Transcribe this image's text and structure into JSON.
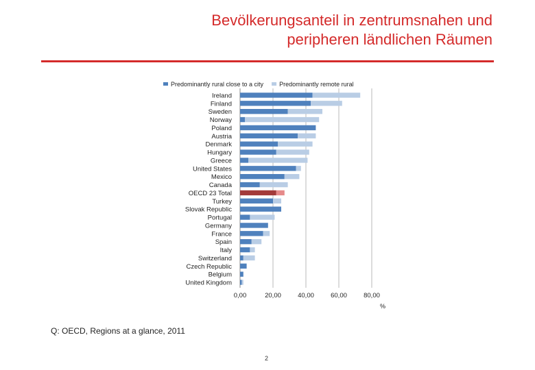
{
  "slide": {
    "title_line1": "Bevölkerungsanteil in zentrumsnahen und",
    "title_line2": "peripheren ländlichen Räumen",
    "source": "Q: OECD, Regions at a glance, 2011",
    "page_number": "2"
  },
  "colors": {
    "accent": "#d42a2a",
    "series_close": "#4f81bd",
    "series_remote": "#b9cde5",
    "highlight_close": "#a33a3a",
    "highlight_remote": "#e68a8a",
    "grid": "#b8b8b8"
  },
  "chart_data": {
    "type": "bar",
    "orientation": "horizontal",
    "stacked": true,
    "categories": [
      "Ireland",
      "Finland",
      "Sweden",
      "Norway",
      "Poland",
      "Austria",
      "Denmark",
      "Hungary",
      "Greece",
      "United States",
      "Mexico",
      "Canada",
      "OECD 23 Total",
      "Turkey",
      "Slovak Republic",
      "Portugal",
      "Germany",
      "France",
      "Spain",
      "Italy",
      "Switzerland",
      "Czech Republic",
      "Belgium",
      "United Kingdom"
    ],
    "highlight_category": "OECD 23 Total",
    "series": [
      {
        "name": "Predominantly rural close to a city",
        "values": [
          44,
          43,
          29,
          3,
          46,
          35,
          23,
          22,
          5,
          34,
          27,
          12,
          22,
          20,
          25,
          6,
          17,
          14,
          7,
          6,
          2,
          4,
          2,
          1
        ]
      },
      {
        "name": "Predominantly remote rural",
        "values": [
          29,
          19,
          21,
          45,
          0,
          11,
          21,
          20,
          36,
          3,
          9,
          17,
          5,
          5,
          0,
          15,
          0,
          4,
          6,
          3,
          7,
          0,
          0,
          1
        ]
      }
    ],
    "xlim": [
      0,
      80
    ],
    "xticks": [
      0,
      20,
      40,
      60,
      80
    ],
    "xtick_labels": [
      "0,00",
      "20,00",
      "40,00",
      "60,00",
      "80,00"
    ],
    "unit": "%",
    "grid": true,
    "legend_position": "top"
  }
}
